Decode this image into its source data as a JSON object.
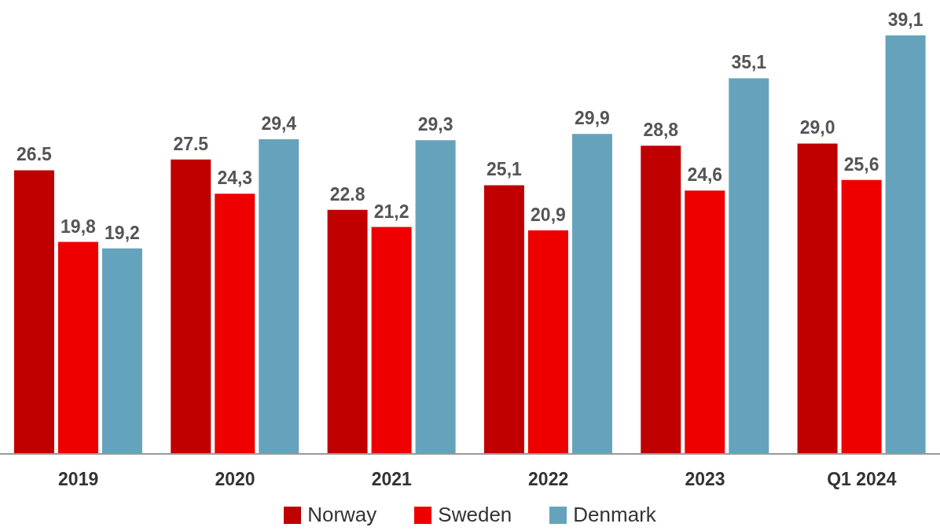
{
  "chart_data": {
    "type": "bar",
    "categories": [
      "2019",
      "2020",
      "2021",
      "2022",
      "2023",
      "Q1 2024"
    ],
    "series": [
      {
        "name": "Norway",
        "color": "#c00000",
        "values": [
          26.5,
          27.5,
          22.8,
          25.1,
          28.8,
          29.0
        ],
        "value_labels": [
          "26.5",
          "27.5",
          "22.8",
          "25,1",
          "28,8",
          "29,0"
        ]
      },
      {
        "name": "Sweden",
        "color": "#ee0000",
        "values": [
          19.8,
          24.3,
          21.2,
          20.9,
          24.6,
          25.6
        ],
        "value_labels": [
          "19,8",
          "24,3",
          "21,2",
          "20,9",
          "24,6",
          "25,6"
        ]
      },
      {
        "name": "Denmark",
        "color": "#65a3bc",
        "values": [
          19.2,
          29.4,
          29.3,
          29.9,
          35.1,
          39.1
        ],
        "value_labels": [
          "19,2",
          "29,4",
          "29,3",
          "29,9",
          "35,1",
          "39,1"
        ]
      }
    ],
    "legend": "bottom"
  }
}
